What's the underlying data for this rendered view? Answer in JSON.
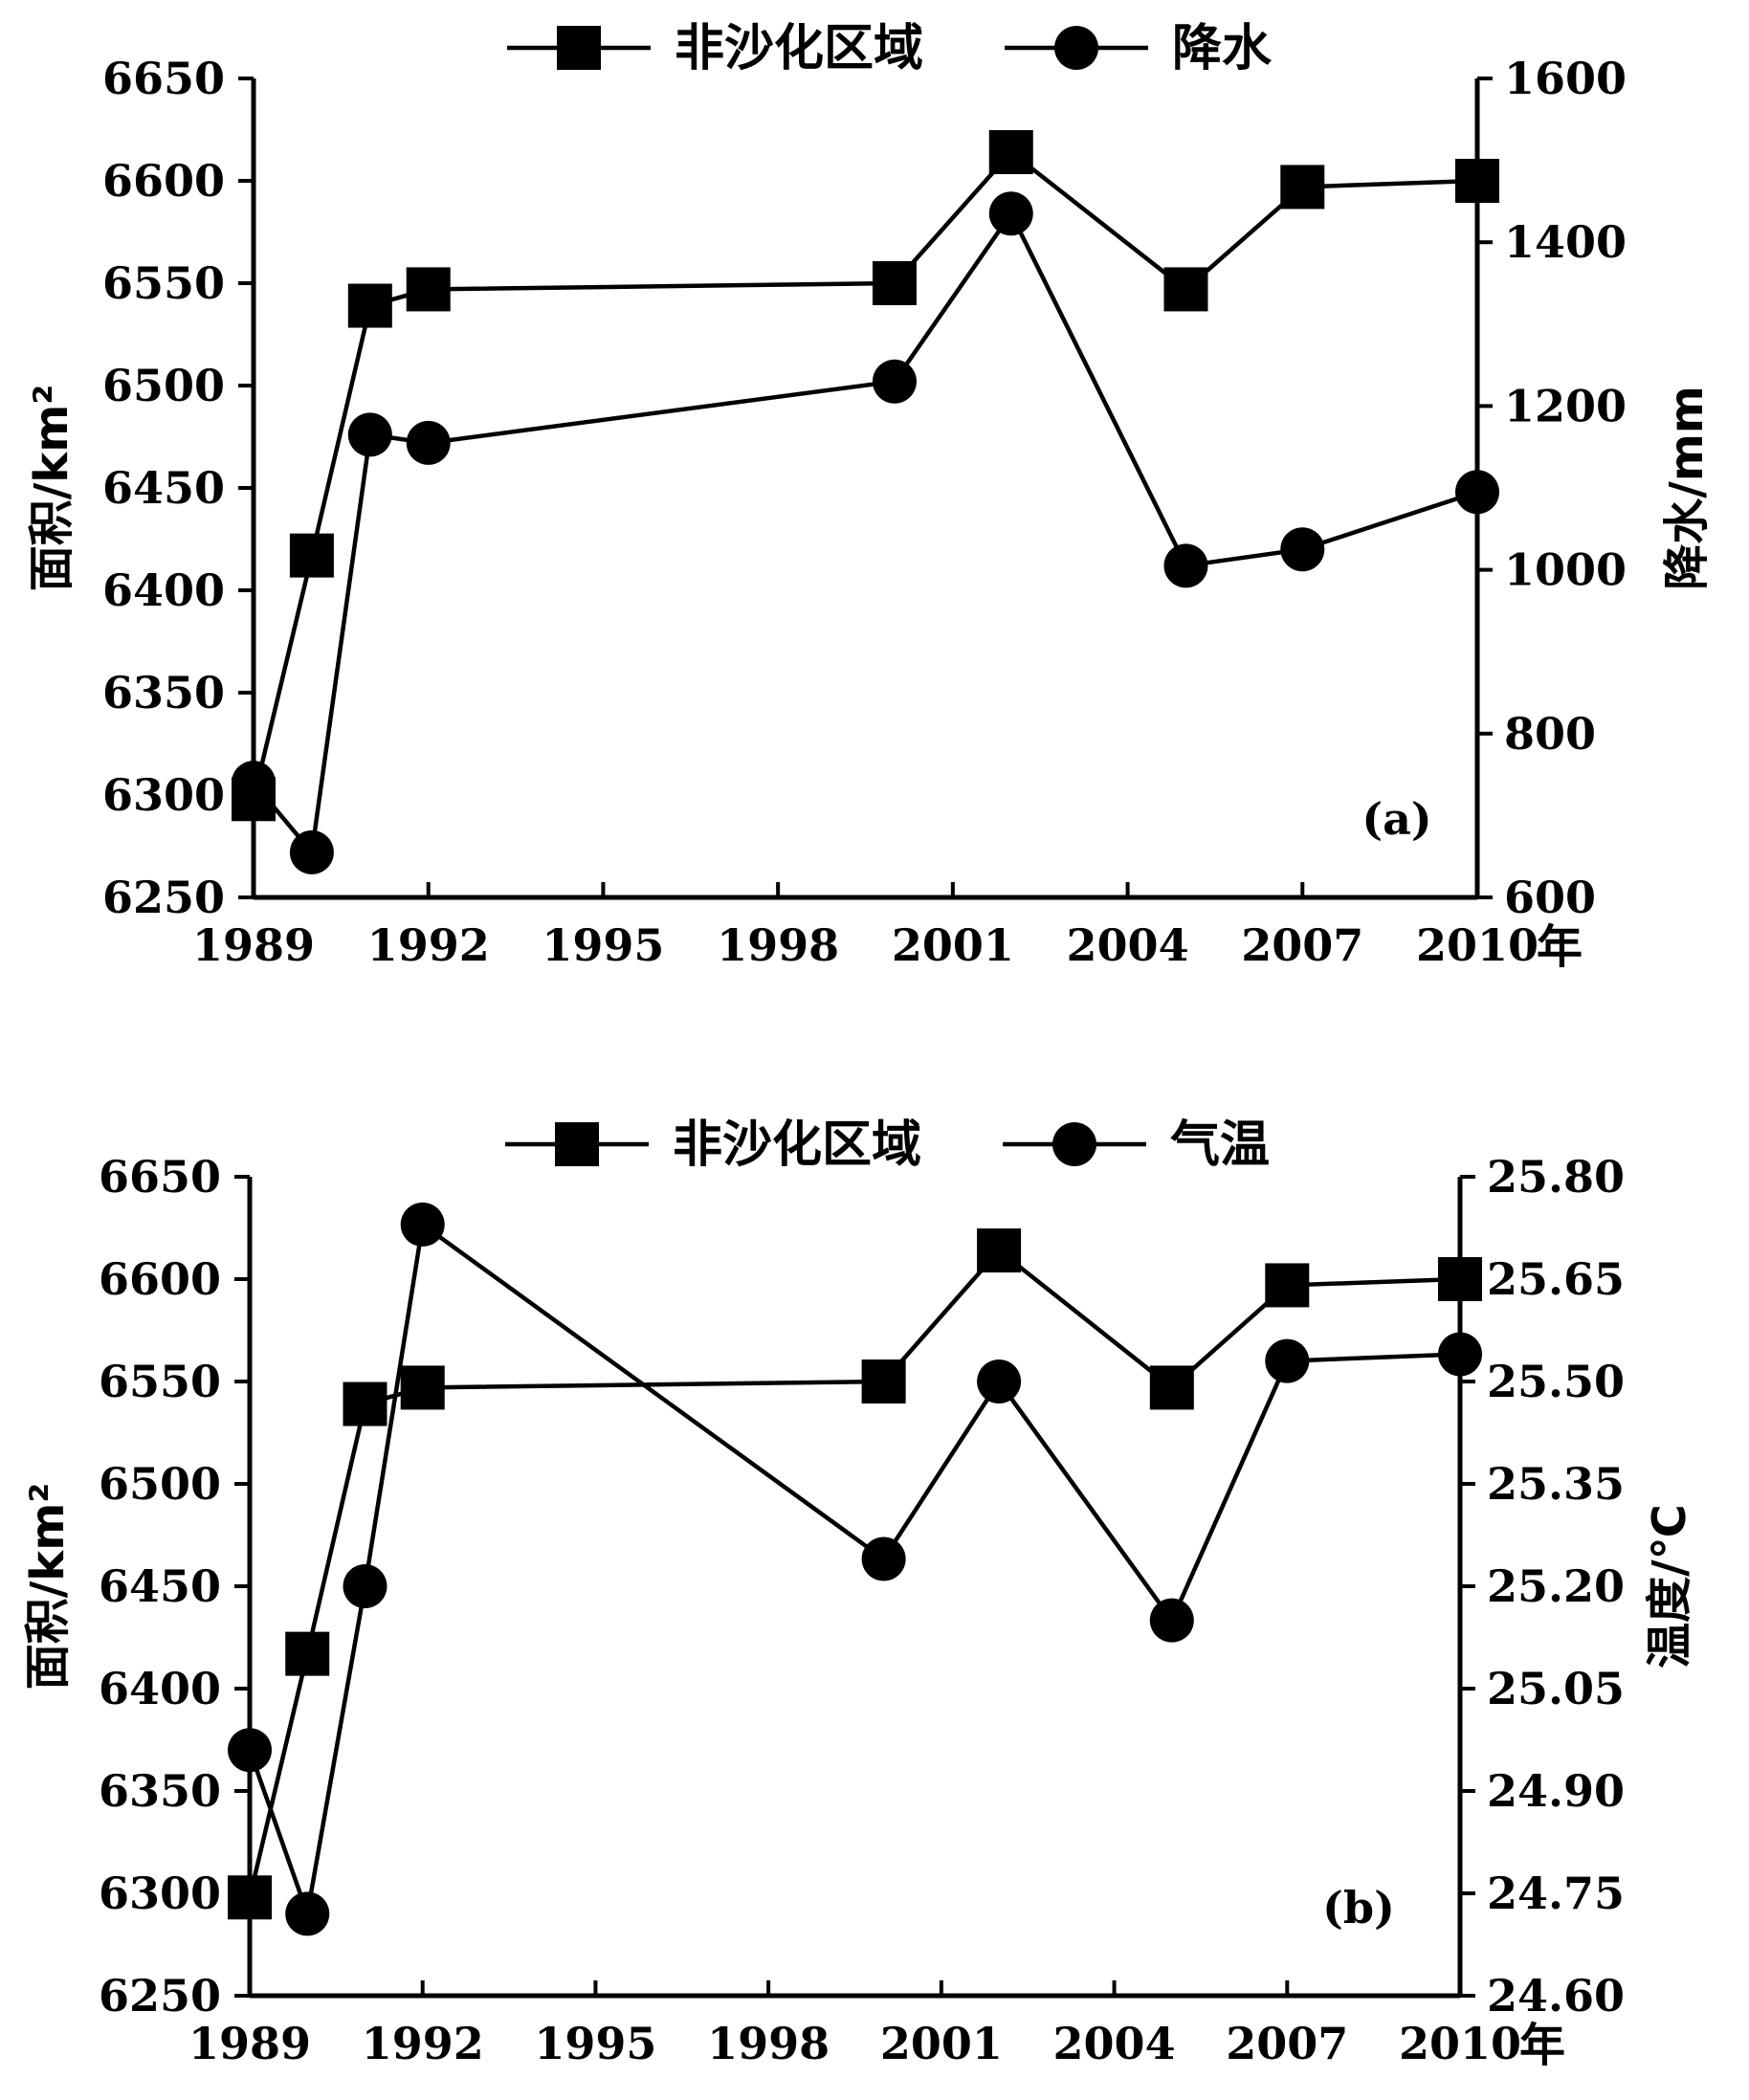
{
  "chart_data": [
    {
      "type": "line",
      "panel_label": "(a)",
      "x_unit": "年",
      "x_ticks": [
        1989,
        1992,
        1995,
        1998,
        2001,
        2004,
        2007,
        2010
      ],
      "xlim": [
        1989,
        2010
      ],
      "ylabel_left": "面积/km²",
      "ylabel_right": "降水/mm",
      "ylim_left": [
        6250,
        6650
      ],
      "yticks_left": [
        6250,
        6300,
        6350,
        6400,
        6450,
        6500,
        6550,
        6600,
        6650
      ],
      "ylim_right": [
        600,
        1600
      ],
      "yticks_right": [
        600,
        800,
        1000,
        1200,
        1400,
        1600
      ],
      "legend_position": "top-center",
      "series": [
        {
          "name": "非沙化区域",
          "axis": "left",
          "marker": "square",
          "x": [
            1989,
            1990,
            1991,
            1992,
            2000,
            2002,
            2005,
            2007,
            2010
          ],
          "values": [
            6298,
            6417,
            6539,
            6547,
            6550,
            6614,
            6547,
            6597,
            6600
          ]
        },
        {
          "name": "降水",
          "axis": "right",
          "marker": "circle",
          "x": [
            1989,
            1990,
            1991,
            1992,
            2000,
            2002,
            2005,
            2007,
            2010
          ],
          "values": [
            740,
            655,
            1165,
            1155,
            1230,
            1435,
            1005,
            1025,
            1095
          ]
        }
      ]
    },
    {
      "type": "line",
      "panel_label": "(b)",
      "x_unit": "年",
      "x_ticks": [
        1989,
        1992,
        1995,
        1998,
        2001,
        2004,
        2007,
        2010
      ],
      "xlim": [
        1989,
        2010
      ],
      "ylabel_left": "面积/km²",
      "ylabel_right": "温度/℃",
      "ylim_left": [
        6250,
        6650
      ],
      "yticks_left": [
        6250,
        6300,
        6350,
        6400,
        6450,
        6500,
        6550,
        6600,
        6650
      ],
      "ylim_right": [
        24.6,
        25.8
      ],
      "yticks_right": [
        "24.60",
        "24.75",
        "24.90",
        "25.05",
        "25.20",
        "25.35",
        "25.50",
        "25.65",
        "25.80"
      ],
      "legend_position": "top-center",
      "series": [
        {
          "name": "非沙化区域",
          "axis": "left",
          "marker": "square",
          "x": [
            1989,
            1990,
            1991,
            1992,
            2000,
            2002,
            2005,
            2007,
            2010
          ],
          "values": [
            6298,
            6417,
            6539,
            6547,
            6550,
            6614,
            6547,
            6597,
            6600
          ]
        },
        {
          "name": "气温",
          "axis": "right",
          "marker": "circle",
          "x": [
            1989,
            1990,
            1991,
            1992,
            2000,
            2002,
            2005,
            2007,
            2010
          ],
          "values": [
            24.96,
            24.72,
            25.2,
            25.73,
            25.24,
            25.5,
            25.15,
            25.53,
            25.54
          ]
        }
      ]
    }
  ]
}
